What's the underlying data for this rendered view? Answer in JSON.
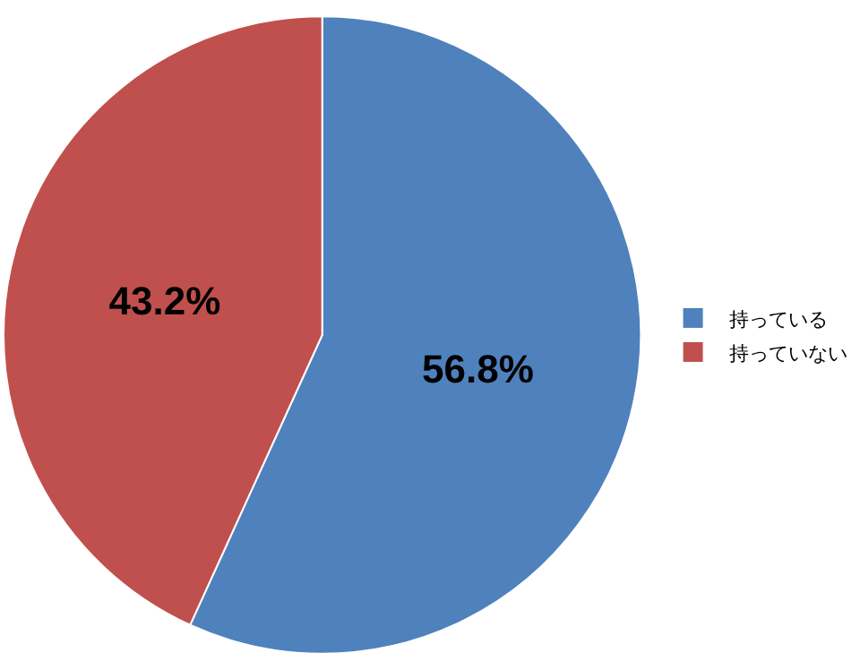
{
  "chart_data": {
    "type": "pie",
    "categories": [
      "持っている",
      "持っていない"
    ],
    "values": [
      56.8,
      43.2
    ],
    "colors": [
      "#4f81bd",
      "#c0504d"
    ],
    "value_labels": [
      "56.8%",
      "43.2%"
    ],
    "legend": "right"
  }
}
